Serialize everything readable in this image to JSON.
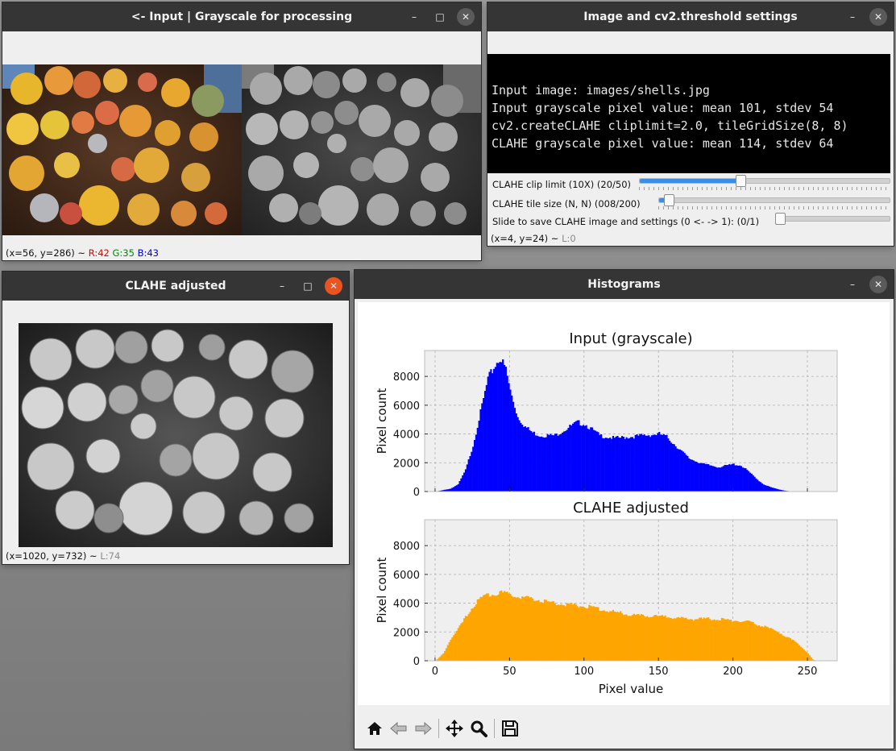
{
  "windows": {
    "input": {
      "title": "<- Input | Grayscale for processing",
      "status": {
        "coords": "(x=56, y=286) ~ ",
        "r": "R:42",
        "g": "G:35",
        "b": "B:43"
      }
    },
    "settings": {
      "title": "Image and cv2.threshold settings",
      "info_lines": [
        "Input image: images/shells.jpg",
        "Input grayscale pixel value: mean 101, stdev 54",
        "cv2.createCLAHE cliplimit=2.0, tileGridSize(8, 8)",
        "CLAHE grayscale pixel value: mean 114, stdev 64"
      ],
      "sliders": [
        {
          "label": "CLAHE clip limit (10X) (20/50)",
          "value": 20,
          "max": 50
        },
        {
          "label": "CLAHE tile size (N, N) (008/200)",
          "value": 8,
          "max": 200
        },
        {
          "label": "Slide to save CLAHE image and settings (0 <- -> 1): (0/1)",
          "value": 0,
          "max": 1
        }
      ],
      "status": {
        "coords": "(x=4, y=24) ~ ",
        "l": "L:0"
      }
    },
    "clahe": {
      "title": "CLAHE adjusted",
      "status": {
        "coords": "(x=1020, y=732) ~ ",
        "l": "L:74"
      }
    },
    "histograms": {
      "title": "Histograms"
    }
  },
  "window_controls": {
    "minimize": "–",
    "maximize": "□",
    "close": "✕"
  },
  "toolbar_icons": [
    "home-icon",
    "back-arrow-icon",
    "forward-arrow-icon",
    "pan-icon",
    "zoom-icon",
    "save-icon"
  ],
  "chart_data": [
    {
      "type": "bar",
      "title": "Input (grayscale)",
      "xlabel": "",
      "ylabel": "Pixel count",
      "xlim": [
        -7,
        270
      ],
      "ylim": [
        0,
        9800
      ],
      "yticks": [
        0,
        2000,
        4000,
        6000,
        8000
      ],
      "xticks": [
        0,
        50,
        100,
        150,
        200,
        250
      ],
      "grid": true,
      "color": "#0000ff",
      "x": [
        0,
        5,
        10,
        15,
        20,
        25,
        30,
        35,
        40,
        43,
        47,
        50,
        55,
        60,
        65,
        70,
        80,
        90,
        95,
        100,
        105,
        110,
        120,
        130,
        140,
        150,
        155,
        160,
        165,
        170,
        180,
        190,
        195,
        200,
        205,
        210,
        215,
        220,
        225,
        230,
        235,
        240
      ],
      "values": [
        0,
        100,
        200,
        500,
        1500,
        3200,
        5500,
        7800,
        8800,
        9300,
        8500,
        7000,
        5200,
        4500,
        4100,
        3900,
        3900,
        4500,
        4800,
        4700,
        4300,
        3900,
        3700,
        3800,
        3900,
        4000,
        3800,
        3300,
        2800,
        2300,
        1900,
        1700,
        1800,
        1900,
        1800,
        1400,
        900,
        500,
        300,
        150,
        50,
        0
      ]
    },
    {
      "type": "bar",
      "title": "CLAHE adjusted",
      "xlabel": "Pixel value",
      "ylabel": "Pixel count",
      "xlim": [
        -7,
        270
      ],
      "ylim": [
        0,
        9800
      ],
      "yticks": [
        0,
        2000,
        4000,
        6000,
        8000
      ],
      "xticks": [
        0,
        50,
        100,
        150,
        200,
        250
      ],
      "grid": true,
      "color": "#ffa500",
      "x": [
        0,
        5,
        10,
        15,
        20,
        25,
        30,
        35,
        40,
        45,
        50,
        60,
        70,
        80,
        90,
        100,
        110,
        120,
        130,
        140,
        150,
        160,
        170,
        180,
        190,
        200,
        210,
        220,
        230,
        240,
        245,
        250,
        253,
        255
      ],
      "values": [
        0,
        500,
        1500,
        2200,
        3000,
        3800,
        4300,
        4600,
        4700,
        4700,
        4600,
        4400,
        4200,
        4000,
        3900,
        3800,
        3600,
        3400,
        3200,
        3100,
        3100,
        3000,
        2900,
        2900,
        2900,
        2800,
        2700,
        2400,
        2000,
        1400,
        1000,
        500,
        100,
        0
      ]
    }
  ]
}
